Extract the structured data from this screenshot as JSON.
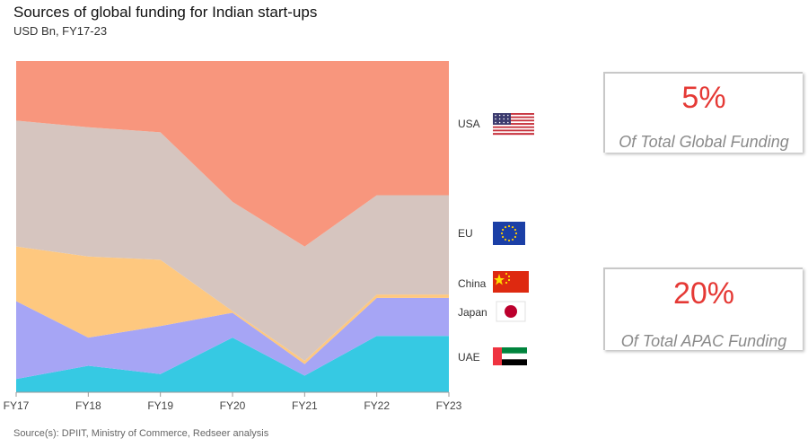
{
  "header": {
    "title": "Sources of global funding for Indian start-ups",
    "subtitle": "USD Bn, FY17-23"
  },
  "footer": {
    "source": "Source(s): DPIIT, Ministry of Commerce, Redseer analysis"
  },
  "cards": {
    "global": {
      "value": "5%",
      "label": "Of Total Global Funding"
    },
    "apac": {
      "value": "20%",
      "label": "Of Total APAC Funding"
    }
  },
  "chart_data": {
    "type": "area",
    "stacked": "percent",
    "categories": [
      "FY17",
      "FY18",
      "FY19",
      "FY20",
      "FY21",
      "FY22",
      "FY23"
    ],
    "ylim": [
      0,
      100
    ],
    "grid": false,
    "series": [
      {
        "name": "UAE",
        "flag": "uae-flag",
        "color": "#36c9e3",
        "values": [
          4,
          8,
          5.5,
          16.5,
          5,
          17,
          17
        ]
      },
      {
        "name": "Japan",
        "flag": "japan-flag",
        "color": "#a6a5f5",
        "values": [
          23.5,
          8.5,
          14.5,
          7.5,
          3.5,
          11.5,
          11.5
        ]
      },
      {
        "name": "China",
        "flag": "china-flag",
        "color": "#fec87f",
        "values": [
          16.5,
          24.5,
          20,
          0.5,
          1,
          1,
          1
        ]
      },
      {
        "name": "EU",
        "flag": "eu-flag",
        "color": "#d6c5bf",
        "values": [
          38,
          39,
          38.5,
          33,
          34.5,
          30,
          30
        ]
      },
      {
        "name": "USA",
        "flag": "usa-flag",
        "color": "#f8967d",
        "values": [
          18,
          20,
          21.5,
          42.5,
          56,
          40.5,
          40.5
        ]
      }
    ]
  }
}
